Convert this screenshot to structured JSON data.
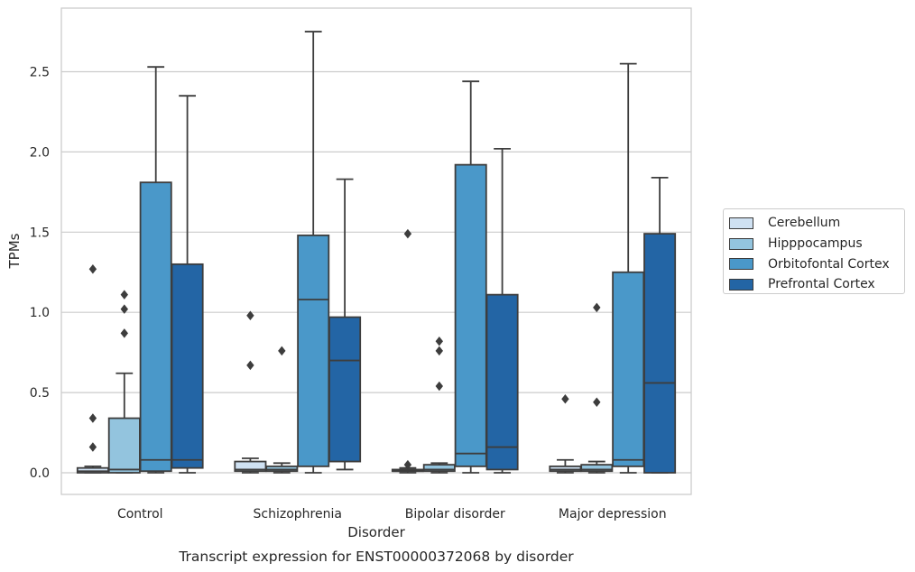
{
  "chart_data": {
    "type": "box",
    "title": "Transcript expression for ENST00000372068 by disorder",
    "xlabel": "Disorder",
    "ylabel": "TPMs",
    "ylim": [
      -0.13,
      2.89
    ],
    "yticks": [
      0.0,
      0.5,
      1.0,
      1.5,
      2.0,
      2.5
    ],
    "ytick_labels": [
      "0.0",
      "0.5",
      "1.0",
      "1.5",
      "2.0",
      "2.5"
    ],
    "grid": "horizontal",
    "legend_position": "right",
    "categories": [
      "Control",
      "Schizophrenia",
      "Bipolar disorder",
      "Major depression"
    ],
    "series": [
      {
        "name": "Cerebellum",
        "color": "#cfe1f2",
        "boxes": [
          {
            "whislo": 0.0,
            "q1": 0.0,
            "med": 0.01,
            "q3": 0.03,
            "whishi": 0.04,
            "fliers": [
              0.16,
              0.34,
              1.27
            ]
          },
          {
            "whislo": 0.0,
            "q1": 0.01,
            "med": 0.02,
            "q3": 0.07,
            "whishi": 0.09,
            "fliers": [
              0.67,
              0.98
            ]
          },
          {
            "whislo": 0.0,
            "q1": 0.01,
            "med": 0.01,
            "q3": 0.02,
            "whishi": 0.03,
            "fliers": [
              0.05,
              1.49
            ]
          },
          {
            "whislo": 0.0,
            "q1": 0.01,
            "med": 0.02,
            "q3": 0.04,
            "whishi": 0.08,
            "fliers": [
              0.46
            ]
          }
        ]
      },
      {
        "name": "Hipppocampus",
        "color": "#93c4de",
        "boxes": [
          {
            "whislo": 0.0,
            "q1": 0.0,
            "med": 0.02,
            "q3": 0.34,
            "whishi": 0.62,
            "fliers": [
              0.87,
              1.02,
              1.11
            ]
          },
          {
            "whislo": 0.0,
            "q1": 0.01,
            "med": 0.02,
            "q3": 0.04,
            "whishi": 0.06,
            "fliers": [
              0.76
            ]
          },
          {
            "whislo": 0.0,
            "q1": 0.01,
            "med": 0.02,
            "q3": 0.05,
            "whishi": 0.06,
            "fliers": [
              0.54,
              0.76,
              0.82
            ]
          },
          {
            "whislo": 0.0,
            "q1": 0.01,
            "med": 0.02,
            "q3": 0.05,
            "whishi": 0.07,
            "fliers": [
              0.44,
              1.03
            ]
          }
        ]
      },
      {
        "name": "Orbitofontal Cortex",
        "color": "#4a98c9",
        "boxes": [
          {
            "whislo": 0.0,
            "q1": 0.01,
            "med": 0.08,
            "q3": 1.81,
            "whishi": 2.53,
            "fliers": []
          },
          {
            "whislo": 0.0,
            "q1": 0.04,
            "med": 1.08,
            "q3": 1.48,
            "whishi": 2.75,
            "fliers": []
          },
          {
            "whislo": 0.0,
            "q1": 0.04,
            "med": 0.12,
            "q3": 1.92,
            "whishi": 2.44,
            "fliers": []
          },
          {
            "whislo": 0.0,
            "q1": 0.04,
            "med": 0.08,
            "q3": 1.25,
            "whishi": 2.55,
            "fliers": []
          }
        ]
      },
      {
        "name": "Prefrontal Cortex",
        "color": "#2365a5",
        "boxes": [
          {
            "whislo": 0.0,
            "q1": 0.03,
            "med": 0.08,
            "q3": 1.3,
            "whishi": 2.35,
            "fliers": []
          },
          {
            "whislo": 0.02,
            "q1": 0.07,
            "med": 0.7,
            "q3": 0.97,
            "whishi": 1.83,
            "fliers": []
          },
          {
            "whislo": 0.0,
            "q1": 0.02,
            "med": 0.16,
            "q3": 1.11,
            "whishi": 2.02,
            "fliers": []
          },
          {
            "whislo": 0.0,
            "q1": 0.0,
            "med": 0.56,
            "q3": 1.49,
            "whishi": 1.84,
            "fliers": []
          }
        ]
      }
    ]
  }
}
